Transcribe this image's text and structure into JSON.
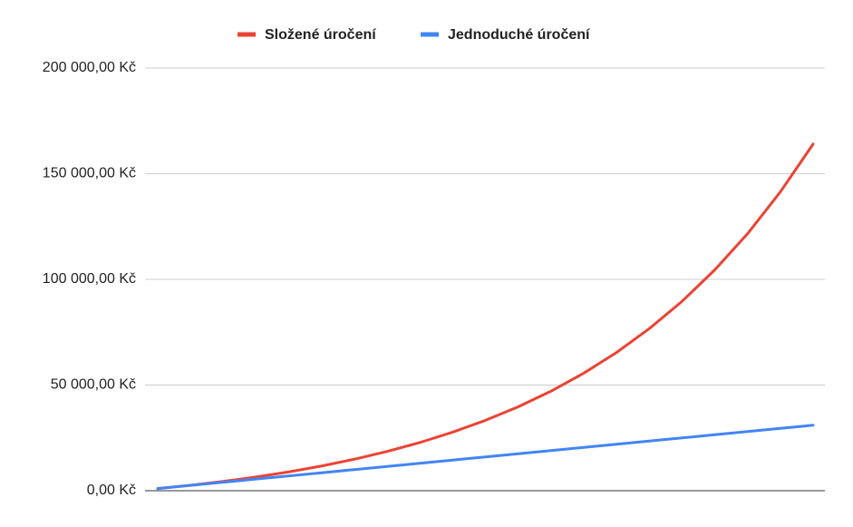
{
  "chart_data": {
    "type": "line",
    "categories": [
      null,
      null,
      null,
      null,
      null,
      null,
      null,
      null,
      null,
      null,
      null,
      null,
      null,
      null,
      null,
      null,
      null,
      null,
      null,
      null,
      null
    ],
    "series": [
      {
        "name": "Složené úročení",
        "color": "#ea4335",
        "values": [
          1000,
          2600,
          4400,
          6500,
          8900,
          11700,
          14900,
          18600,
          22800,
          27700,
          33300,
          39700,
          47100,
          55600,
          65400,
          76700,
          89600,
          104500,
          121600,
          141400,
          164000
        ]
      },
      {
        "name": "Jednoduché úročení",
        "color": "#4285f4",
        "values": [
          1000,
          2500,
          4000,
          5500,
          7000,
          8500,
          10000,
          11500,
          13000,
          14500,
          16000,
          17500,
          19000,
          20500,
          22000,
          23500,
          25000,
          26500,
          28000,
          29500,
          31000
        ]
      }
    ],
    "ylim": [
      0,
      200000
    ],
    "yticks": [
      {
        "value": 0,
        "label": "0,00 Kč"
      },
      {
        "value": 50000,
        "label": "50 000,00 Kč"
      },
      {
        "value": 100000,
        "label": "100 000,00 Kč"
      },
      {
        "value": 150000,
        "label": "150 000,00 Kč"
      },
      {
        "value": 200000,
        "label": "200 000,00 Kč"
      }
    ],
    "grid": true,
    "legend": "top"
  }
}
